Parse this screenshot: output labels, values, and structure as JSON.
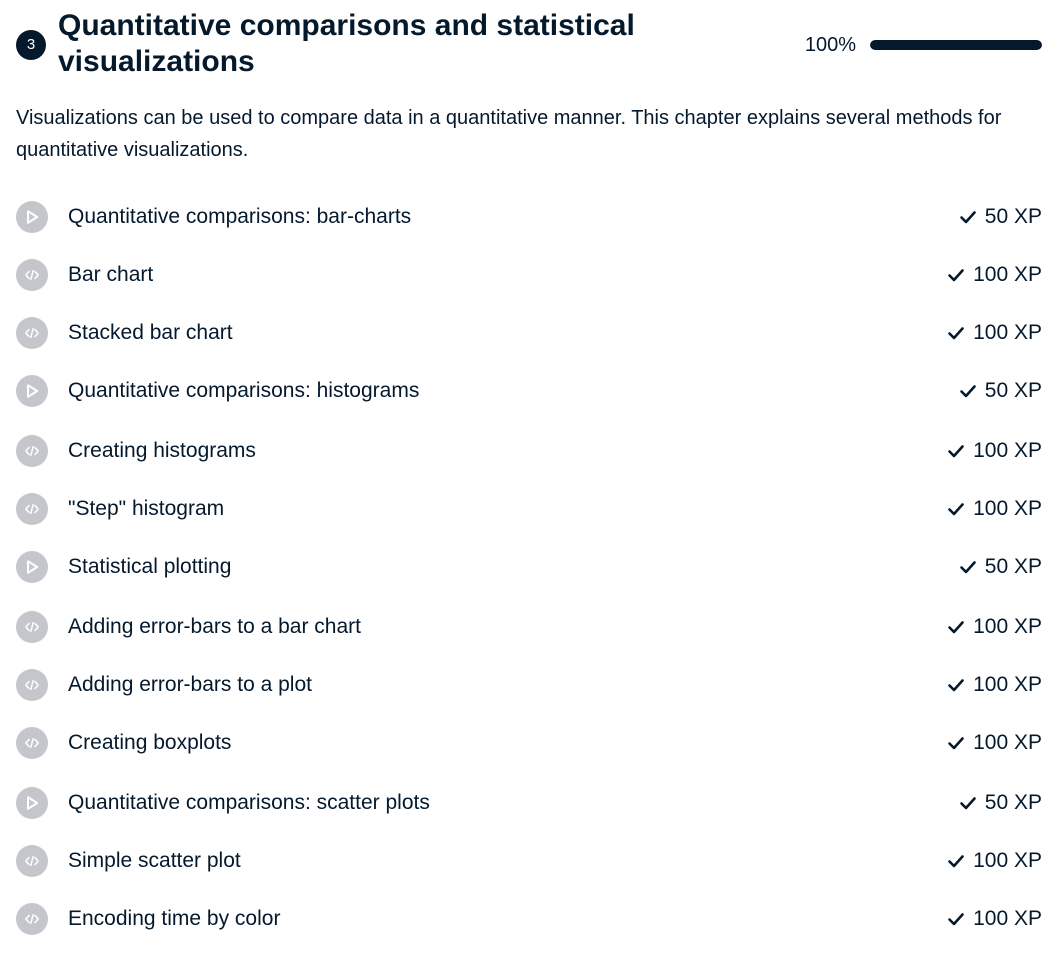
{
  "chapter": {
    "number": "3",
    "title": "Quantitative comparisons and statistical visualizations",
    "progress_label": "100%",
    "progress_fraction": 1.0,
    "description": "Visualizations can be used to compare data in a quantitative manner. This chapter explains several methods for quantitative visualizations."
  },
  "exercises": [
    {
      "title": "Quantitative comparisons: bar-charts",
      "xp": "50 XP",
      "icon": "video-play-icon",
      "completed": true
    },
    {
      "title": "Bar chart",
      "xp": "100 XP",
      "icon": "code-icon",
      "completed": true
    },
    {
      "title": "Stacked bar chart",
      "xp": "100 XP",
      "icon": "code-icon",
      "completed": true
    },
    {
      "title": "Quantitative comparisons: histograms",
      "xp": "50 XP",
      "icon": "video-play-icon",
      "completed": true
    },
    {
      "title": "Creating histograms",
      "xp": "100 XP",
      "icon": "code-icon",
      "completed": true
    },
    {
      "title": "\"Step\" histogram",
      "xp": "100 XP",
      "icon": "code-icon",
      "completed": true
    },
    {
      "title": "Statistical plotting",
      "xp": "50 XP",
      "icon": "video-play-icon",
      "completed": true
    },
    {
      "title": "Adding error-bars to a bar chart",
      "xp": "100 XP",
      "icon": "code-icon",
      "completed": true
    },
    {
      "title": "Adding error-bars to a plot",
      "xp": "100 XP",
      "icon": "code-icon",
      "completed": true
    },
    {
      "title": "Creating boxplots",
      "xp": "100 XP",
      "icon": "code-icon",
      "completed": true
    },
    {
      "title": "Quantitative comparisons: scatter plots",
      "xp": "50 XP",
      "icon": "video-play-icon",
      "completed": true
    },
    {
      "title": "Simple scatter plot",
      "xp": "100 XP",
      "icon": "code-icon",
      "completed": true
    },
    {
      "title": "Encoding time by color",
      "xp": "100 XP",
      "icon": "code-icon",
      "completed": true
    }
  ],
  "colors": {
    "text": "#05192d",
    "icon_background": "#c4c6cc",
    "progress_fill": "#05192d",
    "progress_track": "#e8e8ea"
  }
}
